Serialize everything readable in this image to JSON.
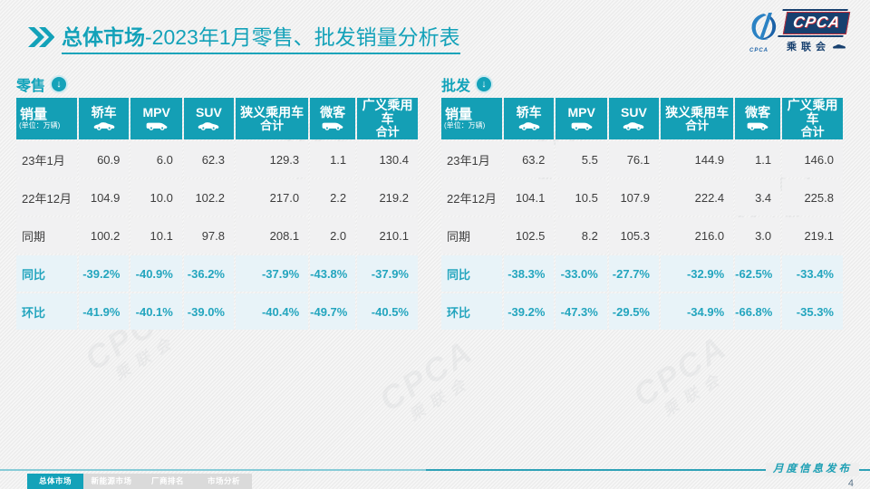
{
  "title": {
    "bold": "总体市场",
    "rest": "-2023年1月零售、批发销量分析表"
  },
  "logo": {
    "cpca": "CPCA",
    "cn": "乘联会",
    "emblem_text": "CPCA"
  },
  "watermark": {
    "line1": "CPCA",
    "line2": "乘联会"
  },
  "tables": {
    "columns": [
      {
        "id": "sales",
        "label": "销量",
        "sublabel": "(单位：万辆)"
      },
      {
        "id": "sedan",
        "label": "轿车",
        "icon": "sedan-icon",
        "iconType": "car"
      },
      {
        "id": "mpv",
        "label": "MPV",
        "icon": "mpv-icon",
        "iconType": "van"
      },
      {
        "id": "suv",
        "label": "SUV",
        "icon": "suv-icon",
        "iconType": "car"
      },
      {
        "id": "npv",
        "label": "狭义乘用车",
        "label2": "合计"
      },
      {
        "id": "micro",
        "label": "微客",
        "icon": "microvan-icon",
        "iconType": "van"
      },
      {
        "id": "bpv",
        "label": "广义乘用车",
        "label2": "合计"
      }
    ],
    "retail": {
      "label": "零售",
      "rows": [
        {
          "label": "23年1月",
          "type": "data",
          "values": [
            "60.9",
            "6.0",
            "62.3",
            "129.3",
            "1.1",
            "130.4"
          ]
        },
        {
          "label": "22年12月",
          "type": "data",
          "values": [
            "104.9",
            "10.0",
            "102.2",
            "217.0",
            "2.2",
            "219.2"
          ]
        },
        {
          "label": "同期",
          "type": "data",
          "values": [
            "100.2",
            "10.1",
            "97.8",
            "208.1",
            "2.0",
            "210.1"
          ]
        },
        {
          "label": "同比",
          "type": "pct",
          "values": [
            "-39.2%",
            "-40.9%",
            "-36.2%",
            "-37.9%",
            "-43.8%",
            "-37.9%"
          ]
        },
        {
          "label": "环比",
          "type": "pct",
          "values": [
            "-41.9%",
            "-40.1%",
            "-39.0%",
            "-40.4%",
            "-49.7%",
            "-40.5%"
          ]
        }
      ]
    },
    "wholesale": {
      "label": "批发",
      "rows": [
        {
          "label": "23年1月",
          "type": "data",
          "values": [
            "63.2",
            "5.5",
            "76.1",
            "144.9",
            "1.1",
            "146.0"
          ]
        },
        {
          "label": "22年12月",
          "type": "data",
          "values": [
            "104.1",
            "10.5",
            "107.9",
            "222.4",
            "3.4",
            "225.8"
          ]
        },
        {
          "label": "同期",
          "type": "data",
          "values": [
            "102.5",
            "8.2",
            "105.3",
            "216.0",
            "3.0",
            "219.1"
          ]
        },
        {
          "label": "同比",
          "type": "pct",
          "values": [
            "-38.3%",
            "-33.0%",
            "-27.7%",
            "-32.9%",
            "-62.5%",
            "-33.4%"
          ]
        },
        {
          "label": "环比",
          "type": "pct",
          "values": [
            "-39.2%",
            "-47.3%",
            "-29.5%",
            "-34.9%",
            "-66.8%",
            "-35.3%"
          ]
        }
      ]
    }
  },
  "footer": {
    "tabs": [
      {
        "label": "总体市场",
        "active": true
      },
      {
        "label": "新能源市场",
        "active": false
      },
      {
        "label": "厂商排名",
        "active": false
      },
      {
        "label": "市场分析",
        "active": false
      }
    ],
    "caption": "月度信息发布",
    "page": "4"
  },
  "colors": {
    "accent_teal": "#14A2B9",
    "pct_text": "#23A5BE",
    "logo_navy": "#17406F",
    "logo_red": "#C2303C",
    "row_gray": "#F1F1F2",
    "row_blue": "#E8F3F8"
  }
}
